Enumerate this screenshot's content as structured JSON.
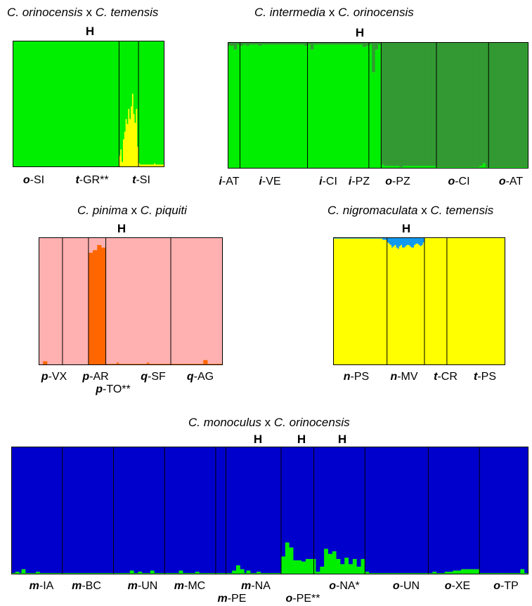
{
  "colors": {
    "o": "#00ee00",
    "t": "#ffff00",
    "i": "#339933",
    "p": "#ffb0b0",
    "q": "#ff6600",
    "n": "#1199ee",
    "m": "#0000cc"
  },
  "chart_data": [
    {
      "type": "bar",
      "title": {
        "sp1": "C. orinocensis",
        "x": "x",
        "sp2": "C. temensis"
      },
      "stacked": true,
      "normalized": true,
      "ylim": [
        0,
        1
      ],
      "hybrid_labels": [
        "H"
      ],
      "clusters": [
        "o",
        "t"
      ],
      "populations": [
        {
          "prefix": "o",
          "name": "-SI",
          "values": [
            1,
            1,
            1,
            1,
            1,
            1,
            1,
            1,
            1,
            1,
            1,
            1,
            1,
            1,
            1,
            1,
            1,
            1,
            1,
            1,
            1,
            1,
            1,
            1,
            1,
            1,
            1,
            1,
            1,
            1,
            1,
            1,
            1,
            1,
            1,
            1,
            1,
            1,
            1,
            1,
            1,
            1,
            1,
            1,
            1,
            1,
            1,
            1,
            1,
            1,
            1,
            1,
            1,
            1,
            1,
            1,
            1,
            1,
            1,
            1,
            1,
            1,
            1,
            1,
            1,
            1,
            1,
            1,
            1,
            1,
            1,
            1,
            1,
            1,
            1,
            1,
            1,
            1,
            1,
            1,
            1,
            1
          ]
        },
        {
          "prefix": "t",
          "name": "-GR**",
          "values": [
            0.09,
            0.14,
            0.04,
            0.22,
            0.28,
            0.38,
            0.34,
            0.46,
            0.38,
            0.48,
            0.58,
            0.42,
            0.35,
            0.46,
            0.16
          ]
        },
        {
          "prefix": "t",
          "name": "-SI",
          "values": [
            0.03,
            0.02,
            0.02,
            0.02,
            0.02,
            0.02,
            0.02,
            0.02,
            0.02,
            0.02,
            0.02,
            0.02,
            0.03,
            0.02,
            0.02,
            0.02,
            0.02,
            0.02,
            0.02,
            0.02
          ]
        }
      ]
    },
    {
      "type": "bar",
      "title": {
        "sp1": "C. intermedia",
        "x": "x",
        "sp2": "C. orinocensis"
      },
      "stacked": true,
      "normalized": true,
      "ylim": [
        0,
        1
      ],
      "hybrid_labels": [
        "H"
      ],
      "clusters": [
        "i",
        "o"
      ],
      "populations": [
        {
          "prefix": "i",
          "name": "-AT",
          "values": [
            0.03,
            0.03,
            0.06,
            0.02
          ]
        },
        {
          "prefix": "i",
          "name": "-VE",
          "values": [
            0.03,
            0.02,
            0.03,
            0.02,
            0.02,
            0.02,
            0.03,
            0.02,
            0.02,
            0.02,
            0.02,
            0.02,
            0.02,
            0.02,
            0.02,
            0.02,
            0.02,
            0.02,
            0.02,
            0.02,
            0.02,
            0.03
          ]
        },
        {
          "prefix": "i",
          "name": "-CI",
          "values": [
            0.02,
            0.06,
            0.02,
            0.02,
            0.02,
            0.02,
            0.02,
            0.02,
            0.02,
            0.02,
            0.02,
            0.02,
            0.02,
            0.02,
            0.02,
            0.02,
            0.02,
            0.02,
            0.04,
            0.03
          ]
        },
        {
          "prefix": "i",
          "name": "-PZ",
          "values": [
            0.02,
            0.24,
            0.06,
            0.02
          ]
        },
        {
          "prefix": "o",
          "name": "-PZ",
          "values": [
            0.03,
            0.02,
            0.02,
            0.02,
            0.02,
            0.02,
            0.01,
            0.02,
            0.02,
            0.02,
            0.02,
            0.02,
            0.02,
            0.02,
            0.02,
            0.02,
            0.02,
            0.02
          ]
        },
        {
          "prefix": "o",
          "name": "-CI",
          "values": [
            0.01,
            0.01,
            0.01,
            0.01,
            0.01,
            0.01,
            0.01,
            0.01,
            0.01,
            0.01,
            0.01,
            0.01,
            0.01,
            0.01,
            0.02,
            0.04,
            0.01
          ]
        },
        {
          "prefix": "o",
          "name": "-AT",
          "values": [
            0.01,
            0.01,
            0.01,
            0.01,
            0.01,
            0.01,
            0.01,
            0.01,
            0.01,
            0.01,
            0.01,
            0.01,
            0.01
          ]
        }
      ]
    },
    {
      "type": "bar",
      "title": {
        "sp1": "C. pinima",
        "x": "x",
        "sp2": "C. piquiti"
      },
      "stacked": true,
      "normalized": true,
      "ylim": [
        0,
        1
      ],
      "hybrid_labels": [
        "H"
      ],
      "clusters": [
        "p",
        "q"
      ],
      "populations": [
        {
          "prefix": "p",
          "name": "-VX",
          "values": [
            1,
            1,
            0.97,
            0.97,
            1,
            1,
            1,
            1,
            1,
            1,
            1
          ]
        },
        {
          "prefix": "p",
          "name": "-AR",
          "values": [
            1,
            1,
            1,
            1,
            1,
            1,
            1,
            1,
            1,
            1,
            1,
            1
          ]
        },
        {
          "prefix": "p",
          "name": "-TO**",
          "values": [
            0.12,
            0.12,
            0.1,
            0.1,
            0.06,
            0.06,
            0.08,
            0.08
          ]
        },
        {
          "prefix": "q",
          "name": "-SF",
          "values": [
            0.01,
            0.01,
            0.01,
            0.01,
            0.01,
            0.02,
            0.01,
            0.01,
            0.01,
            0.01,
            0.01,
            0.01,
            0.01,
            0.01,
            0.01,
            0.01,
            0.01,
            0.01,
            0.01,
            0.02,
            0.01,
            0.01,
            0.01,
            0.01,
            0.01,
            0.01,
            0.01,
            0.01,
            0.01,
            0.01
          ]
        },
        {
          "prefix": "q",
          "name": "-AG",
          "values": [
            0.01,
            0.01,
            0.01,
            0.01,
            0.01,
            0.01,
            0.01,
            0.01,
            0.01,
            0.01,
            0.01,
            0.01,
            0.01,
            0.01,
            0.01,
            0.04,
            0.04,
            0.01,
            0.01,
            0.01,
            0.01,
            0.01,
            0.01,
            0.01
          ]
        }
      ]
    },
    {
      "type": "bar",
      "title": {
        "sp1": "C. nigromaculata",
        "x": "x",
        "sp2": "C. temensis"
      },
      "stacked": true,
      "normalized": true,
      "ylim": [
        0,
        1
      ],
      "hybrid_labels": [
        "H"
      ],
      "clusters": [
        "n",
        "t"
      ],
      "populations": [
        {
          "prefix": "n",
          "name": "-PS",
          "values": [
            0.01,
            0.01,
            0.01,
            0.01,
            0.01,
            0.01,
            0.01,
            0.01,
            0.01,
            0.01,
            0.01,
            0.01,
            0.01,
            0.01,
            0.01,
            0.01,
            0.01,
            0.01,
            0.01,
            0.01,
            0.01,
            0.01,
            0.01,
            0.01,
            0.01,
            0.01,
            0.01,
            0.01,
            0.01,
            0.01,
            0.01,
            0.01,
            0.01,
            0.02,
            0.02,
            0.02
          ]
        },
        {
          "prefix": "n",
          "name": "-MV",
          "values": [
            0.04,
            0.05,
            0.06,
            0.08,
            0.07,
            0.06,
            0.08,
            0.09,
            0.07,
            0.06,
            0.08,
            0.08,
            0.07,
            0.06,
            0.06,
            0.07,
            0.08,
            0.08,
            0.06,
            0.05,
            0.05,
            0.06,
            0.07,
            0.06,
            0.04
          ]
        },
        {
          "prefix": "t",
          "name": "-CR",
          "values": [
            1,
            1,
            1,
            1,
            1,
            1,
            1,
            1,
            1,
            1,
            1,
            1,
            1,
            1,
            1
          ]
        },
        {
          "prefix": "t",
          "name": "-PS",
          "values": [
            1,
            1,
            1,
            1,
            1,
            1,
            1,
            1,
            1,
            1,
            1,
            1,
            1,
            1,
            1,
            1,
            1,
            1,
            1,
            1,
            1,
            1,
            1,
            1,
            1,
            1,
            1,
            1,
            1,
            1,
            1,
            1,
            1,
            1,
            1,
            1,
            1,
            1,
            1
          ]
        }
      ]
    },
    {
      "type": "bar",
      "title": {
        "sp1": "C. monoculus",
        "x": "x",
        "sp2": "C. orinocensis"
      },
      "stacked": true,
      "normalized": true,
      "ylim": [
        0,
        1
      ],
      "hybrid_labels": [
        "H",
        "H",
        "H"
      ],
      "clusters": [
        "m",
        "o"
      ],
      "populations": [
        {
          "prefix": "m",
          "name": "-IA",
          "values": [
            0.99,
            0.99,
            0.98,
            0.98,
            0.99,
            0.96,
            0.96,
            0.99,
            0.99,
            0.99,
            0.99,
            0.99,
            0.98,
            0.98,
            0.99,
            0.99,
            0.99,
            0.99,
            0.99,
            0.99,
            0.99,
            0.99,
            0.99,
            0.99,
            0.99
          ]
        },
        {
          "prefix": "m",
          "name": "-BC",
          "values": [
            0.99,
            0.99,
            0.99,
            0.99,
            0.99,
            0.99,
            0.99,
            0.99,
            0.99,
            0.99,
            0.99,
            0.99,
            0.99,
            0.99,
            0.99,
            0.99,
            0.99,
            0.99,
            0.99,
            0.99,
            0.99,
            0.99,
            0.99,
            0.99,
            0.99
          ]
        },
        {
          "prefix": "m",
          "name": "-UN",
          "values": [
            0.99,
            0.99,
            0.99,
            0.99,
            0.99,
            0.99,
            0.99,
            0.99,
            0.97,
            0.97,
            0.99,
            0.99,
            0.98,
            0.98,
            0.99,
            0.99,
            0.99,
            0.99,
            0.97,
            0.97,
            0.99,
            0.99,
            0.99,
            0.99,
            0.99
          ]
        },
        {
          "prefix": "m",
          "name": "-MC",
          "values": [
            0.99,
            0.99,
            0.99,
            0.99,
            0.99,
            0.99,
            0.99,
            0.97,
            0.97,
            0.99,
            0.99,
            0.99,
            0.99,
            0.99,
            0.99,
            0.98,
            0.98,
            0.99,
            0.99,
            0.99,
            0.99,
            0.99,
            0.99,
            0.99,
            0.99
          ]
        },
        {
          "prefix": "m",
          "name": "-PE",
          "values": [
            0.99,
            0.99,
            0.99,
            0.99,
            0.99
          ]
        },
        {
          "prefix": "m",
          "name": "-NA",
          "values": [
            0.99,
            0.99,
            0.99,
            0.97,
            0.97,
            0.93,
            0.93,
            0.96,
            0.96,
            0.99,
            0.97,
            0.97,
            0.99,
            0.99,
            0.99,
            0.98,
            0.98,
            0.99,
            0.99,
            0.99,
            0.99,
            0.99,
            0.99,
            0.99,
            0.99,
            0.99,
            0.99
          ]
        },
        {
          "prefix": "o",
          "name": "-PE**",
          "values": [
            0.14,
            0.14,
            0.25,
            0.25,
            0.21,
            0.21,
            0.11,
            0.11,
            0.11,
            0.11,
            0.1,
            0.1,
            0.12,
            0.12,
            0.12,
            0.12
          ]
        },
        {
          "prefix": "o",
          "name": "-NA*",
          "values": [
            0.12,
            0.02,
            0.02,
            0.06,
            0.06,
            0.2,
            0.2,
            0.16,
            0.16,
            0.18,
            0.18,
            0.12,
            0.12,
            0.08,
            0.08,
            0.13,
            0.13,
            0.08,
            0.08,
            0.12,
            0.12,
            0.06,
            0.06,
            0.12,
            0.12
          ]
        },
        {
          "prefix": "o",
          "name": "-UN",
          "values": [
            0.02,
            0.02,
            0.01,
            0.01,
            0.01,
            0.01,
            0.01,
            0.01,
            0.01,
            0.01,
            0.01,
            0.01,
            0.01,
            0.01,
            0.01,
            0.01,
            0.01,
            0.01,
            0.01,
            0.01,
            0.01,
            0.01,
            0.01,
            0.01,
            0.01,
            0.01,
            0.01,
            0.01,
            0.01,
            0.01,
            0.01
          ]
        },
        {
          "prefix": "o",
          "name": "-XE",
          "values": [
            0.01,
            0.01,
            0.02,
            0.02,
            0.01,
            0.01,
            0.01,
            0.01,
            0.02,
            0.02,
            0.02,
            0.02,
            0.03,
            0.03,
            0.03,
            0.03,
            0.04,
            0.04,
            0.04,
            0.04,
            0.04,
            0.04,
            0.04,
            0.04,
            0.04
          ]
        },
        {
          "prefix": "o",
          "name": "-TP",
          "values": [
            0.01,
            0.01,
            0.01,
            0.01,
            0.01,
            0.01,
            0.01,
            0.01,
            0.01,
            0.01,
            0.01,
            0.01,
            0.01,
            0.01,
            0.01,
            0.01,
            0.01,
            0.01,
            0.01,
            0.01,
            0.04,
            0.04,
            0.01,
            0.01
          ]
        }
      ]
    }
  ]
}
